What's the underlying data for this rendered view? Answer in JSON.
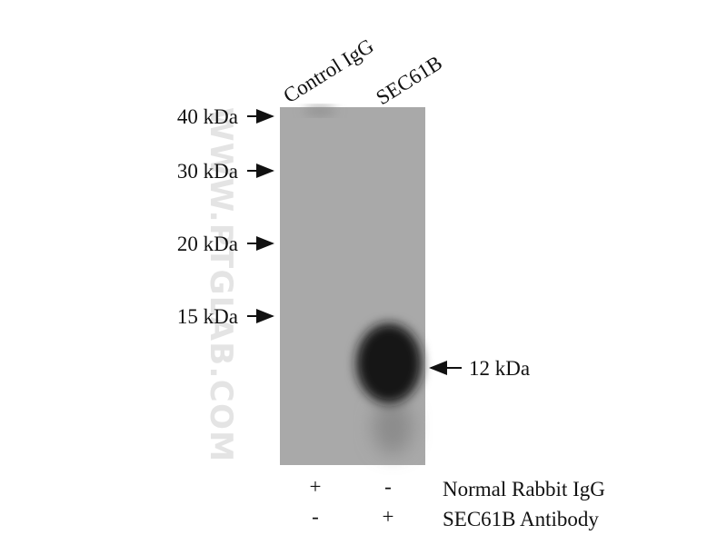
{
  "lanes": [
    "Control IgG",
    "SEC61B"
  ],
  "markers": [
    "40 kDa",
    "30 kDa",
    "20 kDa",
    "15 kDa"
  ],
  "band_label": "12 kDa",
  "watermark": "WWW.PTGLAB.COM",
  "conditions": [
    {
      "label": "Normal Rabbit IgG",
      "lane_1": "+",
      "lane_2": "-"
    },
    {
      "label": "SEC61B Antibody",
      "lane_1": "-",
      "lane_2": "+"
    }
  ]
}
